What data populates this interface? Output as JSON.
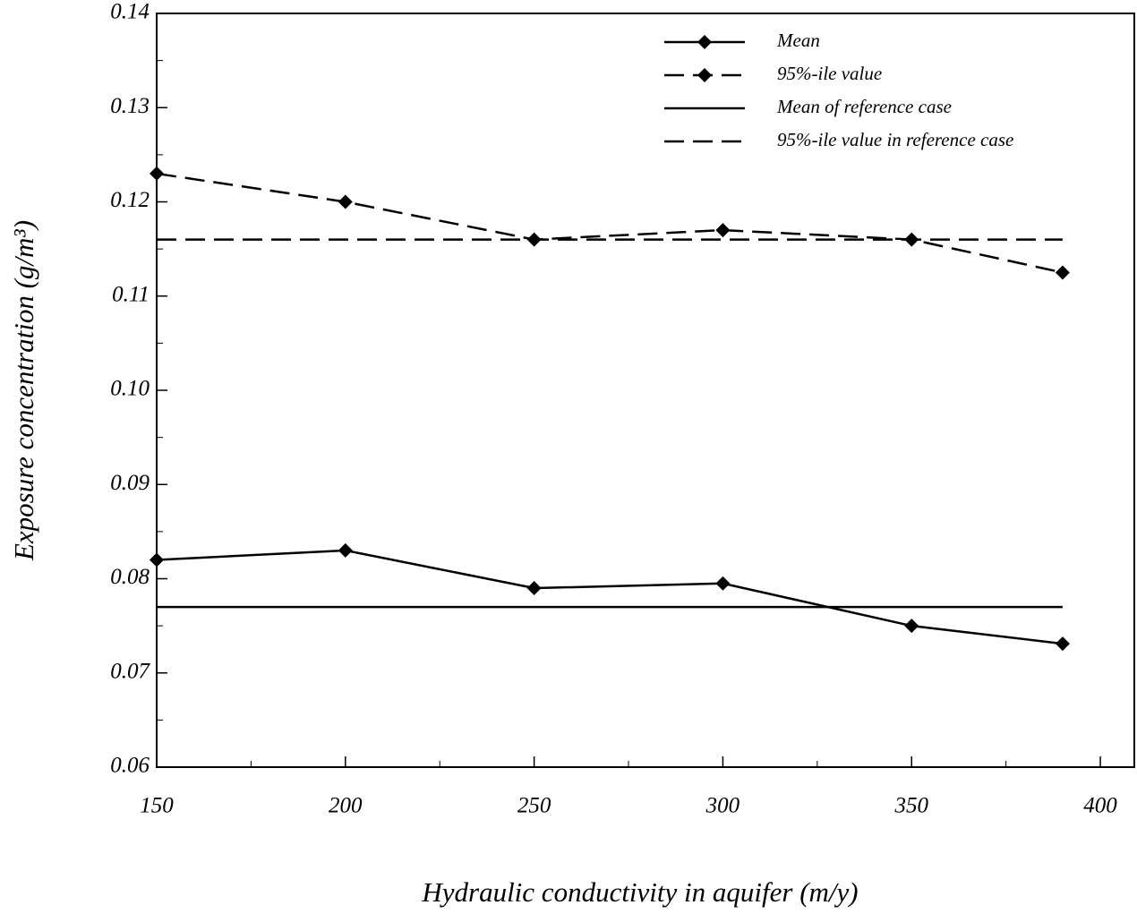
{
  "chart_data": {
    "type": "line",
    "x_label": "Hydraulic conductivity in aquifer (m/y)",
    "y_label": "Exposure concentration (g/m³)",
    "x": [
      150,
      200,
      250,
      300,
      350,
      390
    ],
    "series": [
      {
        "name": "Mean",
        "color": "#000000",
        "dash": false,
        "marker": true,
        "values": [
          0.082,
          0.083,
          0.079,
          0.0795,
          0.075,
          0.0731
        ]
      },
      {
        "name": "95%-ile value",
        "color": "#000000",
        "dash": true,
        "marker": true,
        "values": [
          0.123,
          0.12,
          0.116,
          0.117,
          0.116,
          0.1125
        ]
      },
      {
        "name": "Mean of reference case",
        "color": "#000000",
        "dash": false,
        "marker": false,
        "values": [
          0.077,
          0.077,
          0.077,
          0.077,
          0.077,
          0.077
        ]
      },
      {
        "name": "95%-ile value in reference case",
        "color": "#000000",
        "dash": true,
        "marker": false,
        "values": [
          0.116,
          0.116,
          0.116,
          0.116,
          0.116,
          0.116
        ]
      }
    ],
    "xlim": [
      150,
      409
    ],
    "xticks": [
      150,
      200,
      250,
      300,
      350,
      400
    ],
    "ylim": [
      0.06,
      0.14
    ],
    "yticks": [
      0.06,
      0.07,
      0.08,
      0.09,
      {
        "value": 0.1,
        "label": "0.10"
      },
      0.11,
      0.12,
      0.13,
      0.14
    ],
    "grid": false,
    "legend": "top-right"
  }
}
